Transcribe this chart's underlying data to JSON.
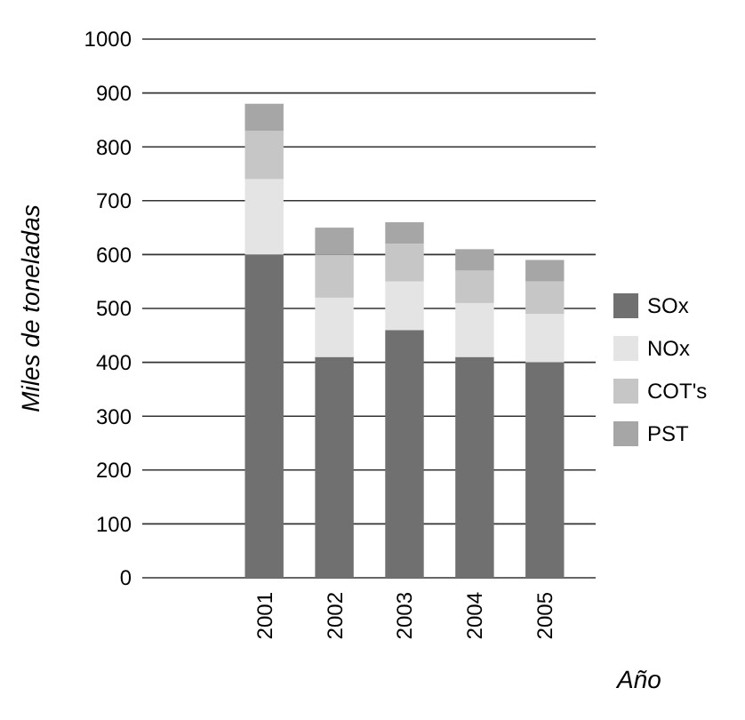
{
  "chart_data": {
    "type": "bar",
    "stacked": true,
    "xlabel": "Año",
    "ylabel": "Miles de toneladas",
    "categories": [
      "2001",
      "2002",
      "2003",
      "2004",
      "2005"
    ],
    "series": [
      {
        "name": "SOx",
        "color": "#707070",
        "values": [
          600,
          410,
          460,
          410,
          400
        ]
      },
      {
        "name": "NOx",
        "color": "#e4e4e4",
        "values": [
          140,
          110,
          90,
          100,
          90
        ]
      },
      {
        "name": "COT's",
        "color": "#c6c6c6",
        "values": [
          90,
          80,
          70,
          60,
          60
        ]
      },
      {
        "name": "PST",
        "color": "#a6a6a6",
        "values": [
          50,
          50,
          40,
          40,
          40
        ]
      }
    ],
    "ylim": [
      0,
      1000
    ],
    "yticks": [
      0,
      100,
      200,
      300,
      400,
      500,
      600,
      700,
      800,
      900,
      1000
    ],
    "grid": "y",
    "legend": "right"
  }
}
